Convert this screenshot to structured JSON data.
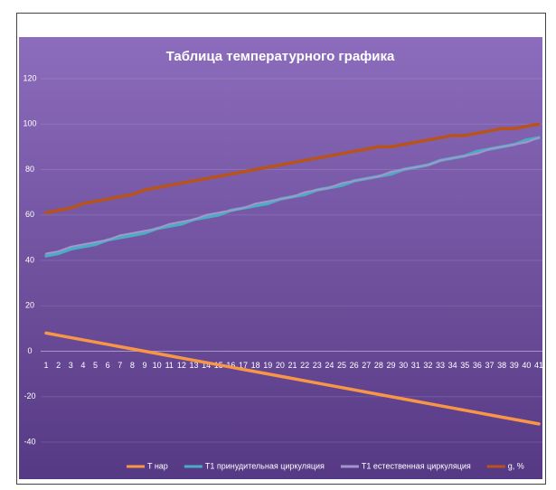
{
  "chart_data": {
    "type": "line",
    "title": "Таблица температурного графика",
    "categories": [
      1,
      2,
      3,
      4,
      5,
      6,
      7,
      8,
      9,
      10,
      11,
      12,
      13,
      14,
      15,
      16,
      17,
      18,
      19,
      20,
      21,
      22,
      23,
      24,
      25,
      26,
      27,
      28,
      29,
      30,
      31,
      32,
      33,
      34,
      35,
      36,
      37,
      38,
      39,
      40,
      41
    ],
    "series": [
      {
        "name": "T нар",
        "color": "#f79646",
        "values": [
          8,
          7,
          6,
          5,
          4,
          3,
          2,
          1,
          0,
          -1,
          -2,
          -3,
          -4,
          -5,
          -6,
          -7,
          -8,
          -9,
          -10,
          -11,
          -12,
          -13,
          -14,
          -15,
          -16,
          -17,
          -18,
          -19,
          -20,
          -21,
          -22,
          -23,
          -24,
          -25,
          -26,
          -27,
          -28,
          -29,
          -30,
          -31,
          -32
        ]
      },
      {
        "name": "T1 принудительная циркуляция",
        "color": "#4bacc6",
        "values": [
          42,
          43,
          45,
          46,
          47,
          49,
          50,
          51,
          52,
          54,
          55,
          56,
          58,
          59,
          60,
          62,
          63,
          64,
          65,
          67,
          68,
          69,
          71,
          72,
          73,
          75,
          76,
          77,
          78,
          80,
          81,
          82,
          84,
          85,
          86,
          88,
          89,
          90,
          91,
          93,
          94
        ]
      },
      {
        "name": "T1 естественная циркуляция",
        "color": "#a396c9",
        "values": [
          43,
          44,
          46,
          47,
          48,
          49,
          51,
          52,
          53,
          54,
          56,
          57,
          58,
          60,
          61,
          62,
          63,
          65,
          66,
          67,
          68,
          70,
          71,
          72,
          74,
          75,
          76,
          77,
          79,
          80,
          81,
          82,
          84,
          85,
          86,
          87,
          89,
          90,
          91,
          92,
          94
        ]
      },
      {
        "name": "g, %",
        "color": "#b8541b",
        "values": [
          61,
          62,
          63,
          65,
          66,
          67,
          68,
          69,
          71,
          72,
          73,
          74,
          75,
          76,
          77,
          78,
          79,
          80,
          81,
          82,
          83,
          84,
          85,
          86,
          87,
          88,
          89,
          90,
          90,
          91,
          92,
          93,
          94,
          95,
          95,
          96,
          97,
          98,
          98,
          99,
          100
        ]
      }
    ],
    "ylim": [
      -40,
      120
    ],
    "yticks": [
      -40,
      -20,
      0,
      20,
      40,
      60,
      80,
      100,
      120
    ],
    "grid": true
  }
}
